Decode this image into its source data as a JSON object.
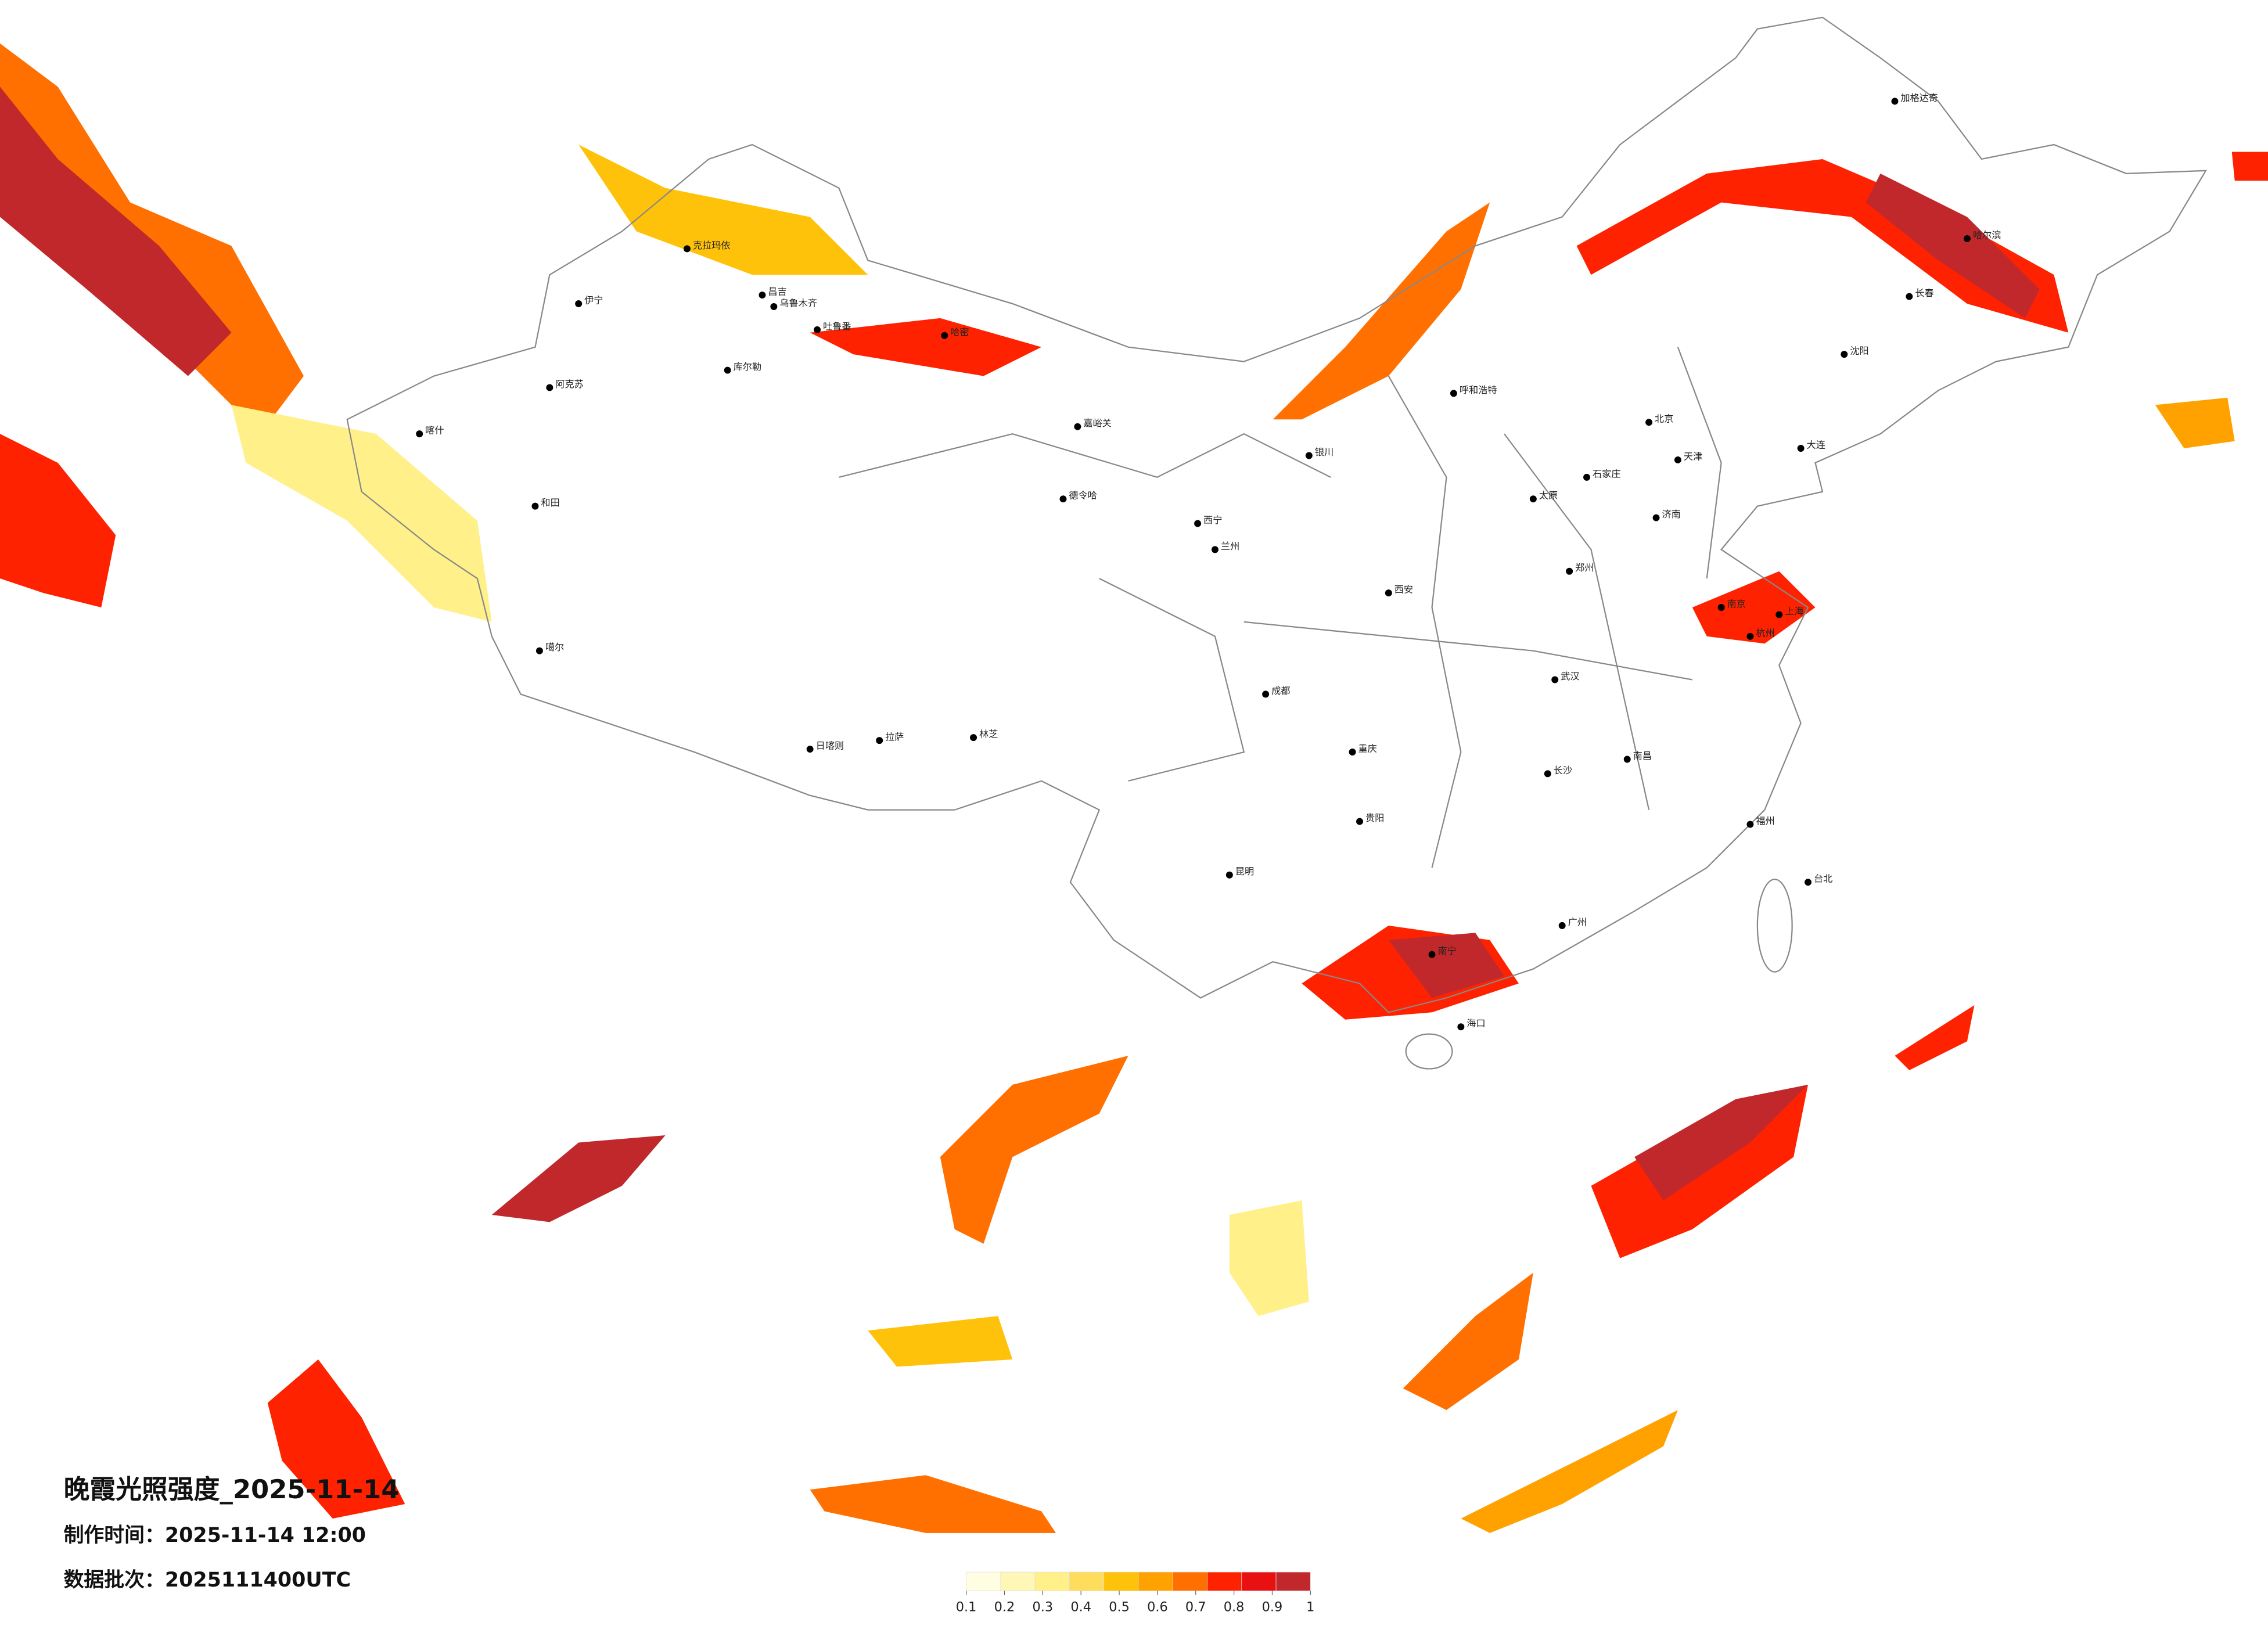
{
  "title": "晚霞光照强度_2025-11-14",
  "made_time": "制作时间：2025-11-14 12:00",
  "batch": "数据批次：2025111400UTC",
  "legend": {
    "colors": [
      "#fffde2",
      "#fff7b5",
      "#fff08a",
      "#ffdd5c",
      "#ffc20a",
      "#ffa200",
      "#ff7000",
      "#ff2200",
      "#e81010",
      "#c0282c"
    ],
    "ticks": [
      0.1,
      0.2,
      0.3,
      0.4,
      0.5,
      0.6,
      0.7,
      0.8,
      0.9,
      1
    ]
  },
  "cities": [
    "伊宁",
    "克拉玛依",
    "昌吉",
    "乌鲁木齐",
    "吐鲁番",
    "哈密",
    "库尔勒",
    "阿克苏",
    "喀什",
    "和田",
    "噶尔",
    "日喀则",
    "拉萨",
    "林芝",
    "嘉峪关",
    "德令哈",
    "西宁",
    "兰州",
    "银川",
    "呼和浩特",
    "北京",
    "天津",
    "石家庄",
    "太原",
    "济南",
    "郑州",
    "西安",
    "成都",
    "重庆",
    "武汉",
    "长沙",
    "南昌",
    "杭州",
    "上海",
    "南京",
    "福州",
    "台北",
    "广州",
    "南宁",
    "海口",
    "昆明",
    "贵阳",
    "沈阳",
    "长春",
    "哈尔滨",
    "大连",
    "加格达奇"
  ]
}
